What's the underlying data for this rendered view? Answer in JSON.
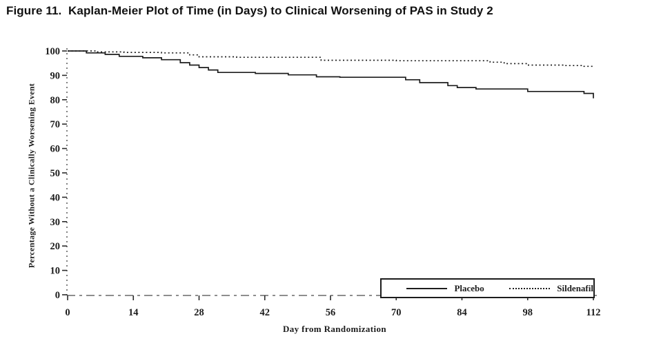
{
  "figure": {
    "title": "Figure 11.  Kaplan-Meier Plot of Time (in Days) to Clinical Worsening of PAS in Study 2"
  },
  "chart_data": {
    "type": "line",
    "subtype": "kaplan-meier-step",
    "title": "Figure 11. Kaplan-Meier Plot of Time (in Days) to Clinical Worsening of PAS in Study 2",
    "xlabel": "Day from Randomization",
    "ylabel": "Percentage Without a Clinically Worsening Event",
    "xlim": [
      0,
      112
    ],
    "ylim": [
      0,
      100
    ],
    "x_ticks": [
      0,
      14,
      28,
      42,
      56,
      70,
      84,
      98,
      112
    ],
    "y_ticks": [
      0,
      10,
      20,
      30,
      40,
      50,
      60,
      70,
      80,
      90,
      100
    ],
    "grid": false,
    "line_color": "#1c1c1c",
    "legend": {
      "position": "bottom-right",
      "entries": [
        {
          "label": "Placebo",
          "style": "solid"
        },
        {
          "label": "Sildenafil",
          "style": "dotted"
        }
      ]
    },
    "series": [
      {
        "name": "Placebo",
        "style": "solid",
        "points": [
          [
            0,
            100
          ],
          [
            4,
            99.2
          ],
          [
            8,
            98.6
          ],
          [
            11,
            97.8
          ],
          [
            16,
            97.2
          ],
          [
            20,
            96.4
          ],
          [
            24,
            95.2
          ],
          [
            26,
            94.2
          ],
          [
            28,
            93.2
          ],
          [
            30,
            92.2
          ],
          [
            32,
            91.2
          ],
          [
            40,
            90.8
          ],
          [
            47,
            90.2
          ],
          [
            53,
            89.4
          ],
          [
            58,
            89.2
          ],
          [
            72,
            88.2
          ],
          [
            75,
            87.0
          ],
          [
            81,
            85.8
          ],
          [
            83,
            85.0
          ],
          [
            87,
            84.4
          ],
          [
            98,
            83.4
          ],
          [
            110,
            82.6
          ],
          [
            112,
            80.6
          ]
        ]
      },
      {
        "name": "Sildenafil",
        "style": "dotted",
        "points": [
          [
            0,
            100
          ],
          [
            6,
            99.6
          ],
          [
            12,
            99.4
          ],
          [
            20,
            99.2
          ],
          [
            26,
            98.4
          ],
          [
            28,
            97.6
          ],
          [
            36,
            97.4
          ],
          [
            54,
            96.2
          ],
          [
            70,
            96.0
          ],
          [
            90,
            95.4
          ],
          [
            93,
            94.8
          ],
          [
            98,
            94.2
          ],
          [
            106,
            94.0
          ],
          [
            110,
            93.7
          ],
          [
            112,
            93.4
          ]
        ]
      }
    ]
  }
}
